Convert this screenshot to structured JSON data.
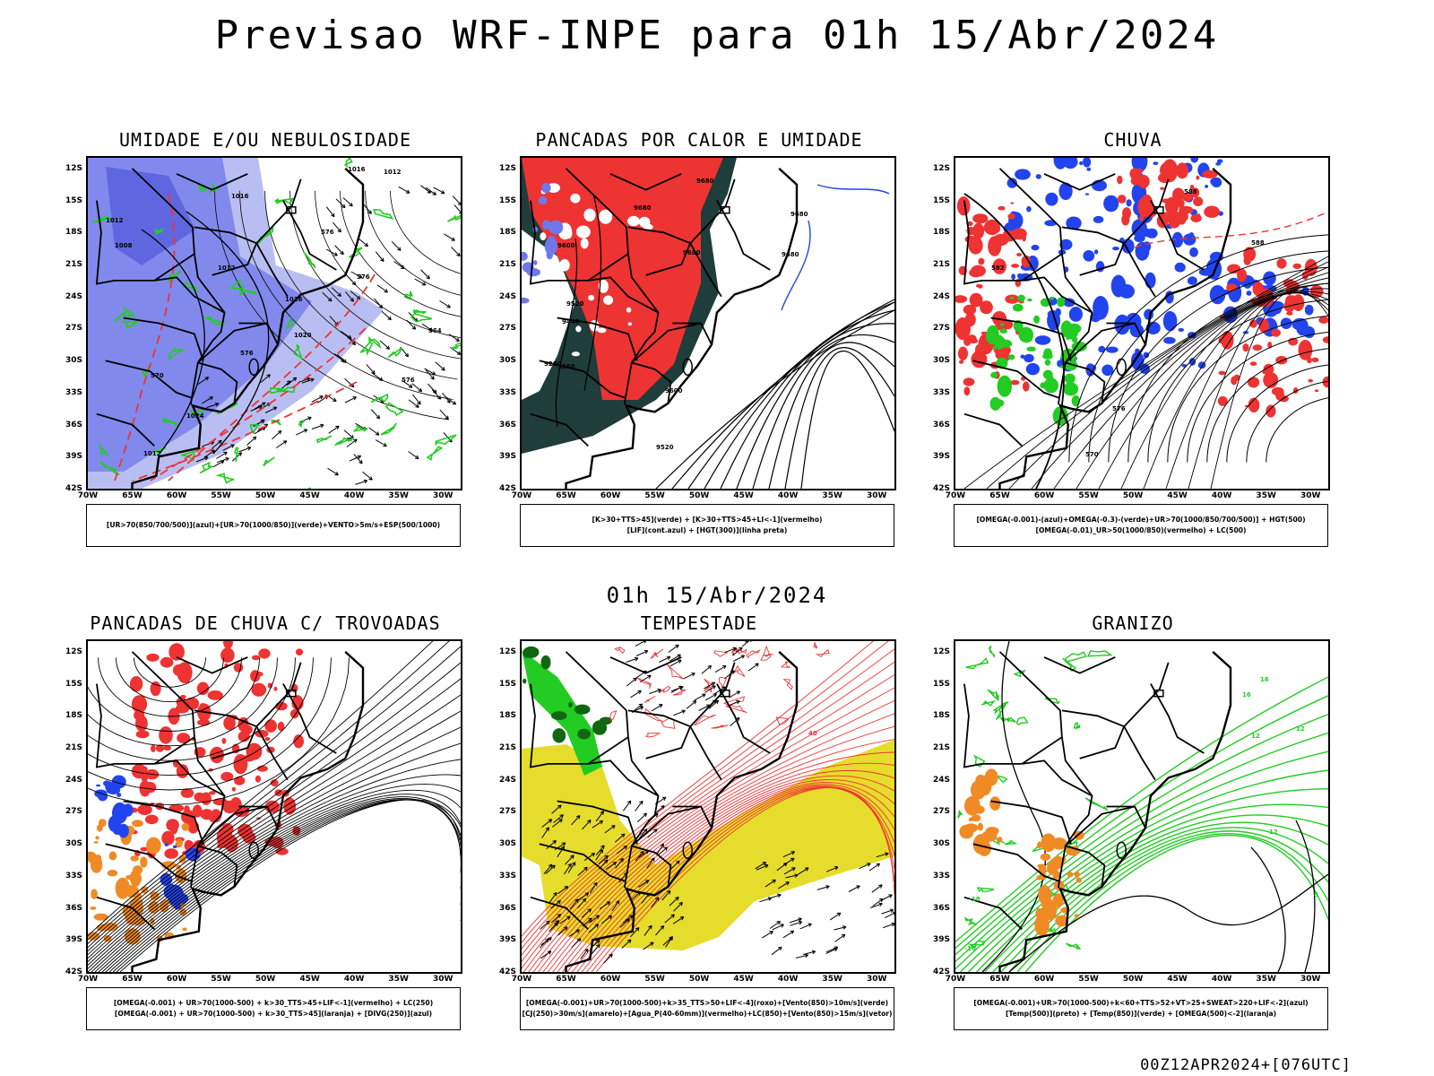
{
  "header": {
    "title": "Previsao WRF-INPE  para 01h 15/Abr/2024",
    "mid_title": "01h 15/Abr/2024",
    "footer": "00Z12APR2024+[076UTC]"
  },
  "axes": {
    "lat_labels": [
      "12S",
      "15S",
      "18S",
      "21S",
      "24S",
      "27S",
      "30S",
      "33S",
      "36S",
      "39S",
      "42S"
    ],
    "lon_labels": [
      "70W",
      "65W",
      "60W",
      "55W",
      "50W",
      "45W",
      "40W",
      "35W",
      "30W"
    ]
  },
  "colors": {
    "humidity_blue": "#6f78ea",
    "humidity_light": "#b9bef2",
    "green": "#22cc22",
    "red": "#ee3333",
    "dark_teal": "#1f3d3a",
    "yellow": "#e6dc2c",
    "orange": "#f08a24",
    "blue": "#2244ee"
  },
  "panels": [
    {
      "title": "UMIDADE E/OU NEBULOSIDADE",
      "legend": [
        "[UR>70(850/700/500)](azul)+[UR>70(1000/850)](verde)+VENTO>5m/s+ESP(500/1000)"
      ],
      "contour_labels": [
        "1012",
        "1016",
        "1012",
        "1008",
        "1012",
        "1016",
        "1020",
        "1024",
        "1012",
        "1016",
        "576",
        "576",
        "576",
        "576",
        "570",
        "564"
      ]
    },
    {
      "title": "PANCADAS POR CALOR E UMIDADE",
      "legend": [
        "[K>30+TTS>45](verde) + [K>30+TTS>45+LI<-1](vermelho)",
        "[LIF](cont.azul) + [HGT(300)](linha preta)"
      ],
      "contour_labels": [
        "9680",
        "9680",
        "9680",
        "9680",
        "9680",
        "9600",
        "9520",
        "9440",
        "9360",
        "9280",
        "9520",
        "9600"
      ]
    },
    {
      "title": "CHUVA",
      "legend": [
        "[OMEGA(-0.001)-(azul)+OMEGA(-0.3)-(verde)+UR>70(1000/850/700/500)] + HGT(500)",
        "[OMEGA(-0.01)_UR>50(1000/850)(vermelho) + LC(500)"
      ],
      "contour_labels": [
        "588",
        "588",
        "582",
        "576",
        "570"
      ]
    },
    {
      "title": "PANCADAS DE CHUVA C/ TROVOADAS",
      "legend": [
        "[OMEGA(-0.001) + UR>70(1000-500) + k>30_TTS>45+LIF<-1](vermelho) + LC(250)",
        "[OMEGA(-0.001) + UR>70(1000-500) + k>30_TTS>45](laranja) + [DIVG(250)](azul)"
      ],
      "contour_labels": []
    },
    {
      "title": "TEMPESTADE",
      "legend": [
        "[OMEGA(-0.001)+UR>70(1000-500)+k>35_TTS>50+LIF<-4](roxo)+[Vento(850)>10m/s](verde)",
        "[CJ(250)>30m/s](amarelo)+[Agua_P(40-60mm)](vermelho)+LC(850)+[Vento(850)>15m/s](vetor)"
      ],
      "contour_labels": [
        "40"
      ]
    },
    {
      "title": "GRANIZO",
      "legend": [
        "[OMEGA(-0.001)+UR>70(1000-500)+k<60+TTS>52+VT>25+SWEAT>220+LIF<-2](azul)",
        "[Temp(500)](preto) + [Temp(850)](verde) + [OMEGA(500)<-2](laranja)"
      ],
      "contour_labels": [
        "16",
        "16",
        "12",
        "12",
        "12",
        "8",
        "-18",
        "-16"
      ]
    }
  ]
}
